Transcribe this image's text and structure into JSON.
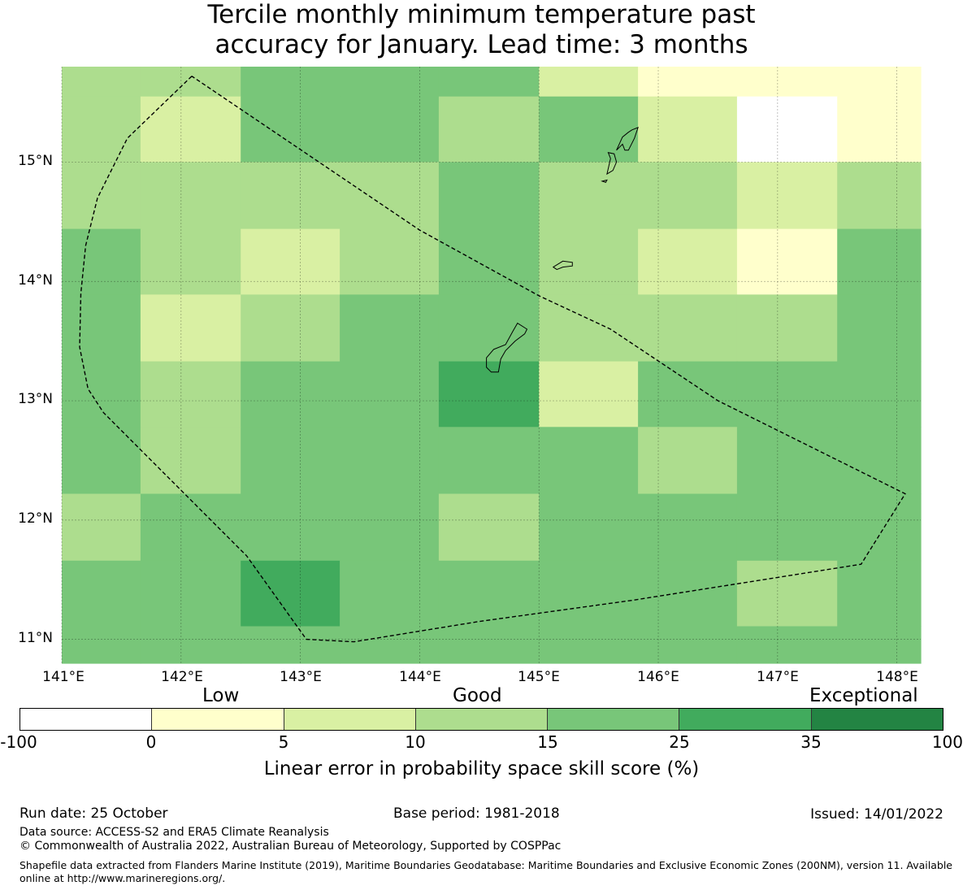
{
  "title": {
    "line1": "Tercile monthly minimum temperature past",
    "line2": "accuracy for January. Lead time: 3 months"
  },
  "map": {
    "lat_labels": [
      "15°N",
      "14°N",
      "13°N",
      "12°N",
      "11°N"
    ],
    "lon_labels": [
      "141°E",
      "142°E",
      "143°E",
      "144°E",
      "145°E",
      "146°E",
      "147°E",
      "148°E"
    ],
    "lon_range": [
      141.0,
      148.2
    ],
    "lat_range": [
      10.8,
      15.8
    ],
    "grid_lons": [
      141,
      142,
      143,
      144,
      145,
      146,
      147,
      148
    ],
    "grid_lats": [
      11,
      12,
      13,
      14,
      15
    ],
    "lon_edges": [
      141.0,
      141.66,
      142.5,
      143.33,
      144.16,
      145.0,
      145.83,
      146.66,
      147.5,
      148.2
    ],
    "lat_edges": [
      15.8,
      15.55,
      15.0,
      14.44,
      13.89,
      13.33,
      12.78,
      12.22,
      11.66,
      11.11,
      10.8
    ],
    "class_grid": [
      [
        3,
        3,
        4,
        4,
        4,
        2,
        1,
        1,
        1
      ],
      [
        3,
        2,
        4,
        4,
        3,
        4,
        2,
        0,
        1
      ],
      [
        3,
        3,
        3,
        3,
        4,
        3,
        3,
        2,
        3
      ],
      [
        4,
        3,
        2,
        3,
        4,
        3,
        2,
        1,
        4
      ],
      [
        4,
        2,
        3,
        4,
        4,
        3,
        3,
        3,
        4
      ],
      [
        4,
        3,
        4,
        4,
        5,
        2,
        4,
        4,
        4
      ],
      [
        4,
        3,
        4,
        4,
        4,
        4,
        3,
        4,
        4
      ],
      [
        3,
        4,
        4,
        4,
        3,
        4,
        4,
        4,
        4
      ],
      [
        4,
        4,
        5,
        4,
        4,
        4,
        4,
        3,
        4
      ],
      [
        4,
        4,
        4,
        4,
        4,
        4,
        4,
        4,
        4
      ]
    ],
    "eez_boundary": [
      [
        142.09,
        15.72
      ],
      [
        141.55,
        15.2
      ],
      [
        141.3,
        14.7
      ],
      [
        141.2,
        14.3
      ],
      [
        141.16,
        13.9
      ],
      [
        141.15,
        13.45
      ],
      [
        141.22,
        13.1
      ],
      [
        141.35,
        12.9
      ],
      [
        141.9,
        12.35
      ],
      [
        142.55,
        11.7
      ],
      [
        143.05,
        11.0
      ],
      [
        143.45,
        10.98
      ],
      [
        144.5,
        11.15
      ],
      [
        145.8,
        11.33
      ],
      [
        147.7,
        11.63
      ],
      [
        148.07,
        12.22
      ],
      [
        146.5,
        13.0
      ],
      [
        145.6,
        13.6
      ],
      [
        145.0,
        13.88
      ],
      [
        144.0,
        14.43
      ],
      [
        142.09,
        15.72
      ]
    ],
    "islands": [
      [
        [
          144.62,
          13.43
        ],
        [
          144.72,
          13.47
        ],
        [
          144.78,
          13.58
        ],
        [
          144.82,
          13.65
        ],
        [
          144.9,
          13.6
        ],
        [
          144.88,
          13.56
        ],
        [
          144.8,
          13.5
        ],
        [
          144.72,
          13.42
        ],
        [
          144.68,
          13.35
        ],
        [
          144.66,
          13.24
        ],
        [
          144.6,
          13.24
        ],
        [
          144.56,
          13.28
        ],
        [
          144.56,
          13.36
        ],
        [
          144.62,
          13.43
        ]
      ],
      [
        [
          145.12,
          14.12
        ],
        [
          145.2,
          14.17
        ],
        [
          145.28,
          14.16
        ],
        [
          145.28,
          14.13
        ],
        [
          145.2,
          14.12
        ],
        [
          145.15,
          14.1
        ],
        [
          145.12,
          14.12
        ]
      ],
      [
        [
          145.57,
          14.9
        ],
        [
          145.6,
          15.03
        ],
        [
          145.58,
          15.08
        ],
        [
          145.63,
          15.07
        ],
        [
          145.65,
          15.0
        ],
        [
          145.62,
          14.93
        ],
        [
          145.57,
          14.9
        ]
      ],
      [
        [
          145.53,
          14.84
        ],
        [
          145.57,
          14.85
        ],
        [
          145.56,
          14.83
        ],
        [
          145.53,
          14.84
        ]
      ],
      [
        [
          145.65,
          15.1
        ],
        [
          145.7,
          15.21
        ],
        [
          145.75,
          15.25
        ],
        [
          145.78,
          15.27
        ],
        [
          145.83,
          15.29
        ],
        [
          145.8,
          15.2
        ],
        [
          145.75,
          15.1
        ],
        [
          145.72,
          15.1
        ],
        [
          145.7,
          15.15
        ],
        [
          145.65,
          15.1
        ]
      ]
    ]
  },
  "colorbar": {
    "quality_labels": [
      "Low",
      "Good",
      "Exceptional"
    ],
    "ticks": [
      "-100",
      "0",
      "5",
      "10",
      "15",
      "25",
      "35",
      "100"
    ],
    "colors": [
      "#ffffff",
      "#ffffcc",
      "#d9f0a3",
      "#addd8e",
      "#78c679",
      "#41ab5d",
      "#238443"
    ],
    "title": "Linear error in probability space skill score (%)"
  },
  "footer": {
    "run_date": "Run date: 25 October",
    "base_period": "Base period: 1981-2018",
    "issued": "Issued: 14/01/2022",
    "data_source": "Data source: ACCESS-S2 and ERA5 Climate Reanalysis",
    "copyright": "© Commonwealth of Australia 2022, Australian Bureau of Meteorology, Supported by COSPPac",
    "shapefile": "Shapefile data extracted from Flanders Marine Institute (2019), Maritime Boundaries Geodatabase: Maritime Boundaries and Exclusive Economic Zones (200NM), version 11. Available online at http://www.marineregions.org/."
  }
}
